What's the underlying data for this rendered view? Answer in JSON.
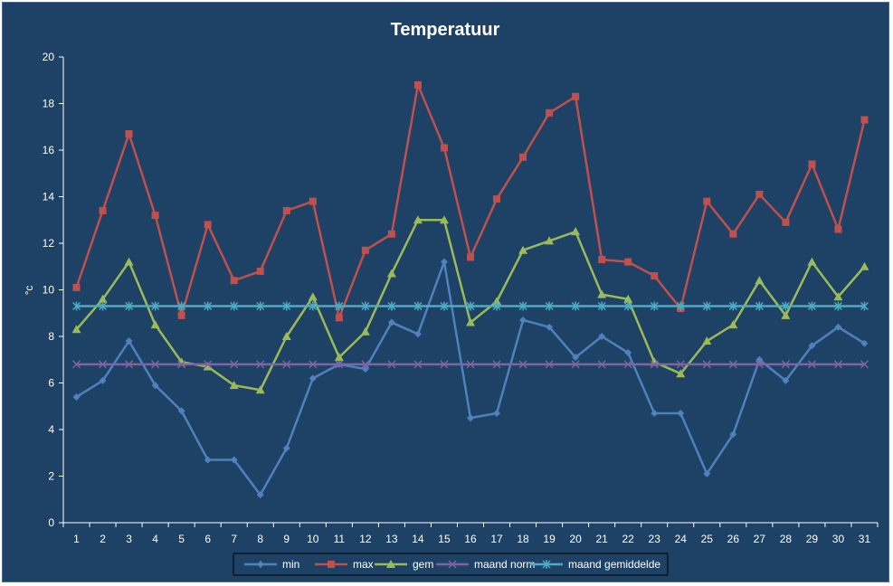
{
  "chart_data": {
    "type": "line",
    "title": "Temperatuur",
    "xlabel": "",
    "ylabel": "°c",
    "ylim": [
      0,
      20
    ],
    "yticks": [
      0,
      2,
      4,
      6,
      8,
      10,
      12,
      14,
      16,
      18,
      20
    ],
    "grid": false,
    "legend_position": "bottom",
    "categories": [
      "1",
      "2",
      "3",
      "4",
      "5",
      "6",
      "7",
      "8",
      "9",
      "10",
      "11",
      "12",
      "13",
      "14",
      "15",
      "16",
      "17",
      "18",
      "19",
      "20",
      "21",
      "22",
      "23",
      "24",
      "25",
      "26",
      "27",
      "28",
      "29",
      "30",
      "31"
    ],
    "series": [
      {
        "name": "min",
        "color": "#4f81bd",
        "marker": "diamond",
        "values": [
          5.4,
          6.1,
          7.8,
          5.9,
          4.8,
          2.7,
          2.7,
          1.2,
          3.2,
          6.2,
          6.8,
          6.6,
          8.6,
          8.1,
          11.2,
          4.5,
          4.7,
          8.7,
          8.4,
          7.1,
          8.0,
          7.3,
          4.7,
          4.7,
          2.1,
          3.8,
          7.0,
          6.1,
          7.6,
          8.4,
          7.7
        ]
      },
      {
        "name": "max",
        "color": "#c0504d",
        "marker": "square",
        "values": [
          10.1,
          13.4,
          16.7,
          13.2,
          8.9,
          12.8,
          10.4,
          10.8,
          13.4,
          13.8,
          8.8,
          11.7,
          12.4,
          18.8,
          16.1,
          11.4,
          13.9,
          15.7,
          17.6,
          18.3,
          11.3,
          11.2,
          10.6,
          9.2,
          13.8,
          12.4,
          14.1,
          12.9,
          15.4,
          12.6,
          17.3
        ]
      },
      {
        "name": "gem",
        "color": "#9bbb59",
        "marker": "triangle",
        "values": [
          8.3,
          9.6,
          11.2,
          8.5,
          6.9,
          6.7,
          5.9,
          5.7,
          8.0,
          9.7,
          7.1,
          8.2,
          10.7,
          13.0,
          13.0,
          8.6,
          9.5,
          11.7,
          12.1,
          12.5,
          9.8,
          9.6,
          6.9,
          6.4,
          7.8,
          8.5,
          10.4,
          8.9,
          11.2,
          9.7,
          11.0
        ]
      },
      {
        "name": "maand norm",
        "color": "#8064a2",
        "marker": "x",
        "values": [
          6.8,
          6.8,
          6.8,
          6.8,
          6.8,
          6.8,
          6.8,
          6.8,
          6.8,
          6.8,
          6.8,
          6.8,
          6.8,
          6.8,
          6.8,
          6.8,
          6.8,
          6.8,
          6.8,
          6.8,
          6.8,
          6.8,
          6.8,
          6.8,
          6.8,
          6.8,
          6.8,
          6.8,
          6.8,
          6.8,
          6.8
        ]
      },
      {
        "name": "maand gemiddelde",
        "color": "#4bacc6",
        "marker": "star",
        "values": [
          9.3,
          9.3,
          9.3,
          9.3,
          9.3,
          9.3,
          9.3,
          9.3,
          9.3,
          9.3,
          9.3,
          9.3,
          9.3,
          9.3,
          9.3,
          9.3,
          9.3,
          9.3,
          9.3,
          9.3,
          9.3,
          9.3,
          9.3,
          9.3,
          9.3,
          9.3,
          9.3,
          9.3,
          9.3,
          9.3,
          9.3
        ]
      }
    ]
  },
  "colors": {
    "background": "#1e4166",
    "axis": "#ffffff",
    "text": "#ffffff"
  }
}
